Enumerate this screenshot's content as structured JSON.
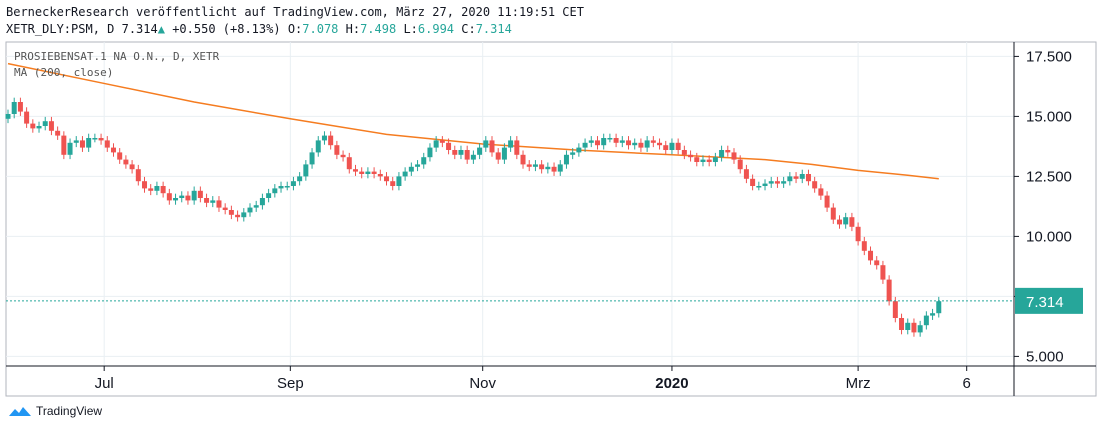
{
  "header": {
    "publisher_line": "BerneckerResearch veröffentlicht auf TradingView.com, März 27, 2020 11:19:51 CET",
    "symbol": "XETR_DLY:PSM, D",
    "last": "7.314",
    "change": "+0.550 (+8.13%)",
    "o_label": "O:",
    "o": "7.078",
    "h_label": "H:",
    "h": "7.498",
    "l_label": "L:",
    "l": "6.994",
    "c_label": "C:",
    "c": "7.314"
  },
  "footer": {
    "brand": "TradingView"
  },
  "colors": {
    "up": "#26a69a",
    "down": "#ef5350",
    "ma": "#f57c20",
    "price_line": "#26a69a",
    "grid": "#e9eff3"
  },
  "chart_data": {
    "type": "candlestick",
    "title": "PROSIEBENSAT.1 NA O.N., D, XETR",
    "indicator": "MA (200, close)",
    "current_price": 7.314,
    "ylim": [
      4.6,
      18.1
    ],
    "y_ticks": [
      5.0,
      7.5,
      10.0,
      12.5,
      15.0,
      17.5
    ],
    "y_tick_labels": [
      "5.000",
      "7.500",
      "10.000",
      "12.500",
      "15.000",
      "17.500"
    ],
    "x_ticks": [
      {
        "label": "Jul",
        "day": 31,
        "bold": false
      },
      {
        "label": "Sep",
        "day": 91,
        "bold": false
      },
      {
        "label": "Nov",
        "day": 153,
        "bold": false
      },
      {
        "label": "2020",
        "day": 214,
        "bold": true
      },
      {
        "label": "Mrz",
        "day": 274,
        "bold": false
      },
      {
        "label": "6",
        "day": 309,
        "bold": false
      }
    ],
    "x_range_days": [
      0,
      312
    ],
    "closes": [
      [
        0,
        15.1
      ],
      [
        2,
        15.6
      ],
      [
        4,
        15.2
      ],
      [
        6,
        14.7
      ],
      [
        8,
        14.5
      ],
      [
        10,
        14.6
      ],
      [
        12,
        14.8
      ],
      [
        14,
        14.4
      ],
      [
        16,
        14.2
      ],
      [
        18,
        13.4
      ],
      [
        20,
        13.9
      ],
      [
        22,
        14.0
      ],
      [
        24,
        13.7
      ],
      [
        26,
        14.1
      ],
      [
        28,
        14.1
      ],
      [
        30,
        14.0
      ],
      [
        32,
        13.7
      ],
      [
        34,
        13.5
      ],
      [
        36,
        13.2
      ],
      [
        38,
        13.0
      ],
      [
        40,
        12.8
      ],
      [
        42,
        12.3
      ],
      [
        44,
        12.0
      ],
      [
        46,
        11.9
      ],
      [
        48,
        12.1
      ],
      [
        50,
        11.8
      ],
      [
        52,
        11.5
      ],
      [
        54,
        11.6
      ],
      [
        56,
        11.7
      ],
      [
        58,
        11.5
      ],
      [
        60,
        11.9
      ],
      [
        62,
        11.6
      ],
      [
        64,
        11.4
      ],
      [
        66,
        11.5
      ],
      [
        68,
        11.2
      ],
      [
        70,
        11.1
      ],
      [
        72,
        10.9
      ],
      [
        74,
        10.8
      ],
      [
        76,
        11.0
      ],
      [
        78,
        11.2
      ],
      [
        80,
        11.3
      ],
      [
        82,
        11.6
      ],
      [
        84,
        11.8
      ],
      [
        86,
        12.0
      ],
      [
        88,
        12.1
      ],
      [
        90,
        12.1
      ],
      [
        92,
        12.3
      ],
      [
        94,
        12.5
      ],
      [
        96,
        13.0
      ],
      [
        98,
        13.5
      ],
      [
        100,
        14.0
      ],
      [
        102,
        14.2
      ],
      [
        104,
        13.8
      ],
      [
        106,
        13.4
      ],
      [
        108,
        13.3
      ],
      [
        110,
        12.8
      ],
      [
        112,
        12.7
      ],
      [
        114,
        12.6
      ],
      [
        116,
        12.7
      ],
      [
        118,
        12.6
      ],
      [
        120,
        12.5
      ],
      [
        122,
        12.3
      ],
      [
        124,
        12.1
      ],
      [
        126,
        12.5
      ],
      [
        128,
        12.7
      ],
      [
        130,
        12.9
      ],
      [
        132,
        13.0
      ],
      [
        134,
        13.3
      ],
      [
        136,
        13.7
      ],
      [
        138,
        14.0
      ],
      [
        140,
        13.9
      ],
      [
        142,
        13.6
      ],
      [
        144,
        13.4
      ],
      [
        146,
        13.6
      ],
      [
        148,
        13.2
      ],
      [
        150,
        13.4
      ],
      [
        152,
        13.7
      ],
      [
        154,
        14.0
      ],
      [
        156,
        13.5
      ],
      [
        158,
        13.2
      ],
      [
        160,
        13.7
      ],
      [
        162,
        14.0
      ],
      [
        164,
        13.4
      ],
      [
        166,
        13.0
      ],
      [
        168,
        12.9
      ],
      [
        170,
        13.0
      ],
      [
        172,
        12.8
      ],
      [
        174,
        12.9
      ],
      [
        176,
        12.7
      ],
      [
        178,
        13.0
      ],
      [
        180,
        13.4
      ],
      [
        182,
        13.5
      ],
      [
        184,
        13.7
      ],
      [
        186,
        13.9
      ],
      [
        188,
        14.0
      ],
      [
        190,
        13.8
      ],
      [
        192,
        14.1
      ],
      [
        194,
        14.1
      ],
      [
        196,
        13.9
      ],
      [
        198,
        14.0
      ],
      [
        200,
        13.8
      ],
      [
        202,
        13.9
      ],
      [
        204,
        13.7
      ],
      [
        206,
        14.0
      ],
      [
        208,
        13.9
      ],
      [
        210,
        13.8
      ],
      [
        212,
        13.6
      ],
      [
        214,
        13.9
      ],
      [
        216,
        13.6
      ],
      [
        218,
        13.4
      ],
      [
        220,
        13.3
      ],
      [
        222,
        13.1
      ],
      [
        224,
        13.2
      ],
      [
        226,
        13.1
      ],
      [
        228,
        13.3
      ],
      [
        230,
        13.6
      ],
      [
        232,
        13.5
      ],
      [
        234,
        13.2
      ],
      [
        236,
        12.8
      ],
      [
        238,
        12.4
      ],
      [
        240,
        12.1
      ],
      [
        242,
        12.1
      ],
      [
        244,
        12.2
      ],
      [
        246,
        12.3
      ],
      [
        248,
        12.2
      ],
      [
        250,
        12.3
      ],
      [
        252,
        12.5
      ],
      [
        254,
        12.4
      ],
      [
        256,
        12.6
      ],
      [
        258,
        12.3
      ],
      [
        260,
        12.0
      ],
      [
        262,
        11.7
      ],
      [
        264,
        11.2
      ],
      [
        266,
        10.7
      ],
      [
        268,
        10.5
      ],
      [
        270,
        10.8
      ],
      [
        272,
        10.4
      ],
      [
        274,
        9.8
      ],
      [
        276,
        9.4
      ],
      [
        278,
        9.0
      ],
      [
        280,
        8.8
      ],
      [
        282,
        8.2
      ],
      [
        284,
        7.3
      ],
      [
        286,
        6.6
      ],
      [
        288,
        6.1
      ],
      [
        290,
        6.4
      ],
      [
        292,
        6.0
      ],
      [
        294,
        6.3
      ],
      [
        296,
        6.7
      ],
      [
        298,
        6.8
      ],
      [
        300,
        7.3
      ]
    ],
    "ma200": [
      [
        0,
        17.2
      ],
      [
        30,
        16.4
      ],
      [
        60,
        15.6
      ],
      [
        91,
        14.9
      ],
      [
        122,
        14.25
      ],
      [
        153,
        13.85
      ],
      [
        183,
        13.6
      ],
      [
        214,
        13.4
      ],
      [
        244,
        13.2
      ],
      [
        259,
        13.0
      ],
      [
        274,
        12.75
      ],
      [
        290,
        12.55
      ],
      [
        300,
        12.4
      ]
    ]
  }
}
